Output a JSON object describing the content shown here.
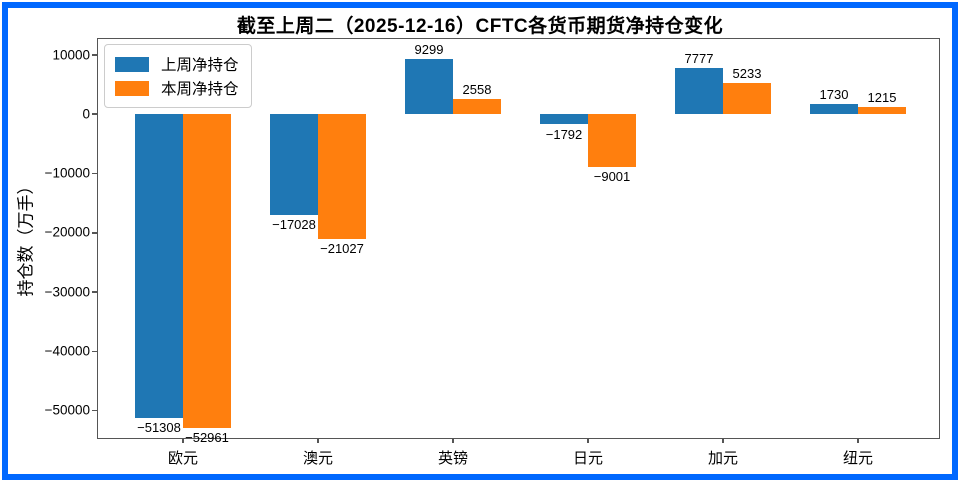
{
  "title": "截至上周二（2025-12-16）CFTC各货币期货净持仓变化",
  "frame_color": "#0068ff",
  "chart_data": {
    "type": "bar",
    "categories": [
      "欧元",
      "澳元",
      "英镑",
      "日元",
      "加元",
      "纽元"
    ],
    "series": [
      {
        "name": "上周净持仓",
        "color": "#1f77b4",
        "values": [
          -51308,
          -17028,
          9299,
          -1792,
          7777,
          1730
        ]
      },
      {
        "name": "本周净持仓",
        "color": "#ff7f0e",
        "values": [
          -52961,
          -21027,
          2558,
          -9001,
          5233,
          1215
        ]
      }
    ],
    "title": "截至上周二（2025-12-16）CFTC各货币期货净持仓变化",
    "xlabel": "",
    "ylabel": "持仓数（万手）",
    "ylim": [
      -54500,
      12800
    ],
    "yticks": [
      10000,
      0,
      -10000,
      -20000,
      -30000,
      -40000,
      -50000
    ],
    "legend_position": "upper left",
    "grid": false,
    "bar_value_labels_shown": true
  }
}
